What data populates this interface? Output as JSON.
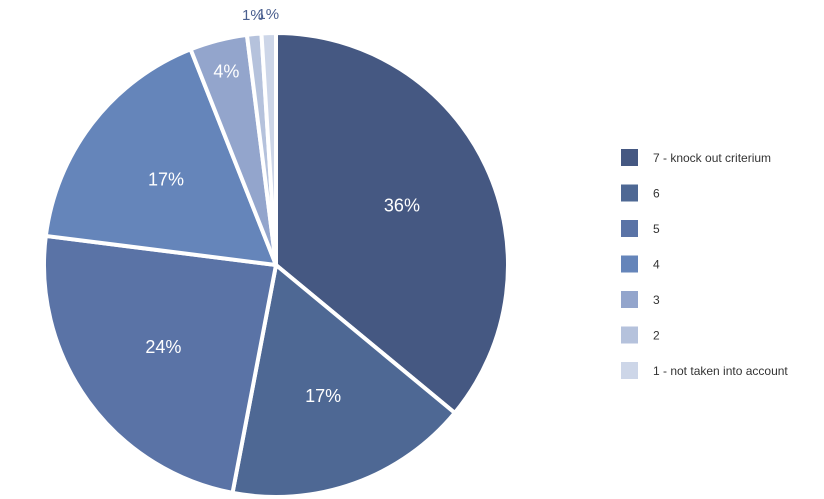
{
  "chart_data": {
    "type": "pie",
    "categories": [
      "7 - knock out criterium",
      "6",
      "5",
      "4",
      "3",
      "2",
      "1 - not taken into account"
    ],
    "values": [
      36,
      17,
      24,
      17,
      4,
      1,
      1
    ],
    "labels": [
      "36%",
      "17%",
      "24%",
      "17%",
      "4%",
      "1%",
      "1%"
    ],
    "colors": [
      "#455882",
      "#4e6894",
      "#5a73a6",
      "#6585ba",
      "#93a5cc",
      "#b5c2dc",
      "#cdd6e8"
    ],
    "start_angle_deg": 0,
    "direction": "clockwise",
    "legend_position": "right"
  }
}
